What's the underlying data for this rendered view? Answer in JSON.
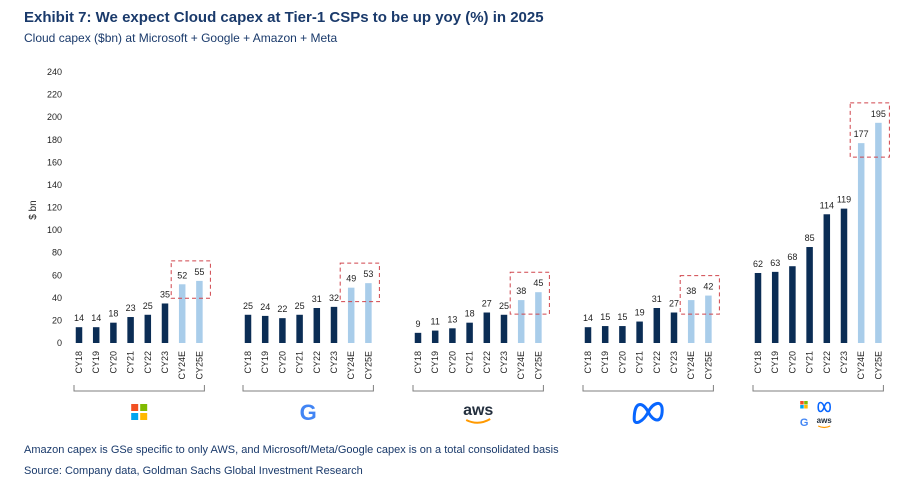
{
  "header": {
    "title": "Exhibit 7: We expect Cloud capex at Tier-1 CSPs to be up yoy (%) in 2025",
    "subtitle": "Cloud capex ($bn) at Microsoft + Google + Amazon + Meta"
  },
  "footer": {
    "note": "Amazon capex is GSe specific to only AWS, and Microsoft/Meta/Google capex is on a total consolidated basis",
    "source": "Source: Company data, Goldman Sachs Global Investment Research"
  },
  "colors": {
    "actual": "#0b2d55",
    "estimate": "#a9cdea",
    "highlight": "#d0454c",
    "text": "#1a3a6b"
  },
  "chart_data": {
    "type": "bar",
    "ylabel": "$ bn",
    "ylim": [
      0,
      240
    ],
    "yticks": [
      0,
      20,
      40,
      60,
      80,
      100,
      120,
      140,
      160,
      180,
      200,
      220,
      240
    ],
    "grid": false,
    "categories": [
      "CY18",
      "CY19",
      "CY20",
      "CY21",
      "CY22",
      "CY23",
      "CY24E",
      "CY25E"
    ],
    "estimate_categories": [
      "CY24E",
      "CY25E"
    ],
    "groups": [
      {
        "icon": "microsoft-logo-icon",
        "values": [
          14,
          14,
          18,
          23,
          25,
          35,
          52,
          55
        ]
      },
      {
        "icon": "google-logo-icon",
        "values": [
          25,
          24,
          22,
          25,
          31,
          32,
          49,
          53
        ]
      },
      {
        "icon": "aws-logo-icon",
        "logo_text": "aws",
        "values": [
          9,
          11,
          13,
          18,
          27,
          25,
          38,
          45
        ]
      },
      {
        "icon": "meta-logo-icon",
        "values": [
          14,
          15,
          15,
          19,
          31,
          27,
          38,
          42
        ]
      },
      {
        "icon": "combined-logos-icon",
        "logo_text": "aws",
        "values": [
          62,
          63,
          68,
          85,
          114,
          119,
          177,
          195
        ]
      }
    ]
  }
}
